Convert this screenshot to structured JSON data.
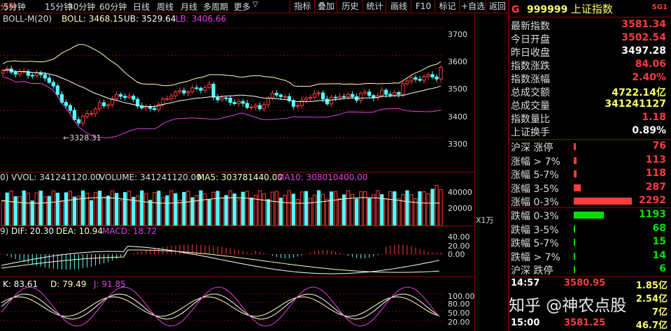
{
  "toolbar": {
    "periods": [
      "分钟",
      "5分钟",
      "15分钟",
      "30分钟",
      "60分钟",
      "日线",
      "周线",
      "月线",
      "多周期",
      "更多"
    ],
    "more_arrow": "▽",
    "buttons": [
      "指标",
      "叠加",
      "历史",
      "统计",
      "画线",
      "F10",
      "标记",
      "+自选",
      "返回"
    ]
  },
  "main_chart": {
    "indicator_name": "BOLL-M(20)",
    "boll": "BOLL: 3468.15",
    "ub": "UB: 3529.64",
    "lb": "LB: 3406.66",
    "y_ticks": [
      "3700",
      "3600",
      "3500",
      "3400",
      "3300"
    ],
    "low_marker": "3328.31"
  },
  "volume_chart": {
    "prefix": "0)",
    "vvol": "VVOL: 341241120.00",
    "volume": "VOLUME: 341241120.00",
    "ma5": "MA5: 303781440.00",
    "ma10": "MA10: 308010400.00",
    "y_ticks": [
      "40000",
      "20000"
    ],
    "unit": "X1万"
  },
  "macd_chart": {
    "prefix": "9)",
    "dif": "DIF: 20.30",
    "dea": "DEA: 10.94",
    "macd": "MACD: 18.72",
    "y_ticks": [
      "40.00",
      "20.00",
      "0.00"
    ]
  },
  "kdj_chart": {
    "k": "K: 83.61",
    "d": "D: 79.49",
    "j": "J: 91.85",
    "y_ticks": [
      "100.00",
      "80.00",
      "50.00",
      "20.00"
    ]
  },
  "quote": {
    "flag": "G",
    "code": "999999",
    "name": "上证指数",
    "badge": "SG1",
    "rows": [
      {
        "label": "最新指数",
        "value": "3581.34",
        "color": "red"
      },
      {
        "label": "今日开盘",
        "value": "3502.54",
        "color": "red"
      },
      {
        "label": "昨日收盘",
        "value": "3497.28",
        "color": "wht"
      },
      {
        "label": "指数涨跌",
        "value": "84.06",
        "color": "red"
      },
      {
        "label": "指数涨幅",
        "value": "2.40%",
        "color": "red"
      },
      {
        "label": "总成交额",
        "value": "4722.14亿",
        "color": "ylw"
      },
      {
        "label": "总成交量",
        "value": "341241127",
        "color": "ylw"
      },
      {
        "label": "指数量比",
        "value": "1.18",
        "color": "red"
      },
      {
        "label": "上证换手",
        "value": "0.89%",
        "color": "wht"
      }
    ]
  },
  "breadth": {
    "up": [
      {
        "label": "沪深 涨停",
        "count": "76",
        "ratio": 0.033
      },
      {
        "label": "涨幅 > 7%",
        "count": "113",
        "ratio": 0.049
      },
      {
        "label": "涨幅 5-7%",
        "count": "118",
        "ratio": 0.051
      },
      {
        "label": "涨幅 3-5%",
        "count": "287",
        "ratio": 0.125
      },
      {
        "label": "涨幅 0-3%",
        "count": "2292",
        "ratio": 1.0
      }
    ],
    "down": [
      {
        "label": "跌幅 0-3%",
        "count": "1193",
        "ratio": 0.52
      },
      {
        "label": "跌幅 3-5%",
        "count": "68",
        "ratio": 0.03
      },
      {
        "label": "跌幅 5-7%",
        "count": "15",
        "ratio": 0.007
      },
      {
        "label": "跌幅 > 7%",
        "count": "14",
        "ratio": 0.006
      },
      {
        "label": "沪深 跌停",
        "count": "6",
        "ratio": 0.003
      }
    ]
  },
  "ticks": [
    {
      "time": "14:57",
      "price": "3580.95",
      "amount": "1.85亿"
    },
    {
      "time": "",
      "price": "",
      "amount": "2.54亿"
    },
    {
      "time": "",
      "price": "",
      "amount": "7亿"
    },
    {
      "time": "15:00",
      "price": "3581.25",
      "amount": "46.7亿"
    }
  ],
  "watermark": "知乎 @神农点股",
  "colors": {
    "up": "#ff3c3c",
    "down": "#54ffff",
    "boll_mid": "#ffffc0",
    "boll_band": "#ffffff",
    "lb": "#e040e0",
    "grid_border": "#8b0000"
  }
}
